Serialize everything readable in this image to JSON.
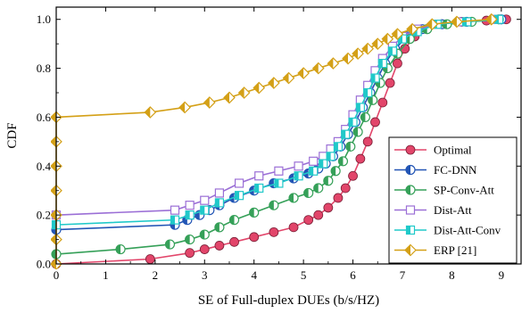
{
  "chart_data": {
    "type": "line",
    "title": "",
    "xlabel": "SE of Full-duplex DUEs (b/s/HZ)",
    "ylabel": "CDF",
    "xlim": [
      0,
      9.4
    ],
    "ylim": [
      0,
      1.05
    ],
    "xticks": [
      "0",
      "1",
      "2",
      "3",
      "4",
      "5",
      "6",
      "7",
      "8",
      "9"
    ],
    "yticks": [
      "0.0",
      "0.2",
      "0.4",
      "0.6",
      "0.8",
      "1.0"
    ],
    "grid": false,
    "legend_position": "bottom-right",
    "series": [
      {
        "name": "Optimal",
        "color": "#e2456a",
        "marker": "circle",
        "points": [
          [
            0,
            0
          ],
          [
            1.9,
            0.02
          ],
          [
            2.7,
            0.045
          ],
          [
            3.0,
            0.06
          ],
          [
            3.3,
            0.075
          ],
          [
            3.6,
            0.09
          ],
          [
            4.0,
            0.11
          ],
          [
            4.4,
            0.13
          ],
          [
            4.8,
            0.15
          ],
          [
            5.1,
            0.18
          ],
          [
            5.3,
            0.2
          ],
          [
            5.5,
            0.23
          ],
          [
            5.7,
            0.27
          ],
          [
            5.85,
            0.31
          ],
          [
            6.0,
            0.36
          ],
          [
            6.15,
            0.43
          ],
          [
            6.3,
            0.5
          ],
          [
            6.45,
            0.58
          ],
          [
            6.6,
            0.66
          ],
          [
            6.75,
            0.74
          ],
          [
            6.9,
            0.82
          ],
          [
            7.05,
            0.88
          ],
          [
            7.25,
            0.93
          ],
          [
            7.5,
            0.96
          ],
          [
            7.8,
            0.98
          ],
          [
            8.2,
            0.99
          ],
          [
            8.7,
            0.995
          ],
          [
            9.1,
            1.0
          ]
        ]
      },
      {
        "name": "FC-DNN",
        "color": "#2255b5",
        "marker": "half-circle",
        "points": [
          [
            0,
            0.14
          ],
          [
            2.4,
            0.16
          ],
          [
            2.65,
            0.18
          ],
          [
            2.9,
            0.2
          ],
          [
            3.1,
            0.22
          ],
          [
            3.3,
            0.24
          ],
          [
            3.6,
            0.27
          ],
          [
            4.0,
            0.3
          ],
          [
            4.4,
            0.33
          ],
          [
            4.8,
            0.35
          ],
          [
            5.1,
            0.37
          ],
          [
            5.3,
            0.39
          ],
          [
            5.45,
            0.41
          ],
          [
            5.6,
            0.44
          ],
          [
            5.75,
            0.48
          ],
          [
            5.9,
            0.53
          ],
          [
            6.05,
            0.58
          ],
          [
            6.2,
            0.64
          ],
          [
            6.35,
            0.7
          ],
          [
            6.5,
            0.76
          ],
          [
            6.65,
            0.82
          ],
          [
            6.85,
            0.88
          ],
          [
            7.1,
            0.93
          ],
          [
            7.4,
            0.96
          ],
          [
            7.8,
            0.98
          ],
          [
            8.3,
            0.99
          ],
          [
            9.0,
            1.0
          ]
        ]
      },
      {
        "name": "SP-Conv-Att",
        "color": "#35a058",
        "marker": "half-circle",
        "points": [
          [
            0,
            0.04
          ],
          [
            1.3,
            0.06
          ],
          [
            2.3,
            0.08
          ],
          [
            2.7,
            0.1
          ],
          [
            3.0,
            0.12
          ],
          [
            3.3,
            0.15
          ],
          [
            3.6,
            0.18
          ],
          [
            4.0,
            0.21
          ],
          [
            4.4,
            0.24
          ],
          [
            4.8,
            0.27
          ],
          [
            5.1,
            0.29
          ],
          [
            5.3,
            0.31
          ],
          [
            5.5,
            0.34
          ],
          [
            5.65,
            0.38
          ],
          [
            5.8,
            0.42
          ],
          [
            5.95,
            0.48
          ],
          [
            6.1,
            0.54
          ],
          [
            6.25,
            0.6
          ],
          [
            6.4,
            0.67
          ],
          [
            6.55,
            0.74
          ],
          [
            6.7,
            0.8
          ],
          [
            6.9,
            0.86
          ],
          [
            7.15,
            0.92
          ],
          [
            7.5,
            0.96
          ],
          [
            7.9,
            0.98
          ],
          [
            8.4,
            0.99
          ],
          [
            8.95,
            1.0
          ]
        ]
      },
      {
        "name": "Dist-Att",
        "color": "#9b6fd6",
        "marker": "square",
        "points": [
          [
            0,
            0.2
          ],
          [
            2.4,
            0.22
          ],
          [
            2.7,
            0.24
          ],
          [
            3.0,
            0.26
          ],
          [
            3.3,
            0.29
          ],
          [
            3.7,
            0.33
          ],
          [
            4.1,
            0.36
          ],
          [
            4.5,
            0.38
          ],
          [
            4.9,
            0.4
          ],
          [
            5.2,
            0.42
          ],
          [
            5.4,
            0.44
          ],
          [
            5.55,
            0.47
          ],
          [
            5.7,
            0.5
          ],
          [
            5.85,
            0.55
          ],
          [
            6.0,
            0.61
          ],
          [
            6.15,
            0.67
          ],
          [
            6.3,
            0.73
          ],
          [
            6.45,
            0.79
          ],
          [
            6.6,
            0.84
          ],
          [
            6.8,
            0.89
          ],
          [
            7.0,
            0.93
          ],
          [
            7.3,
            0.96
          ],
          [
            7.7,
            0.98
          ],
          [
            8.2,
            0.99
          ],
          [
            8.9,
            1.0
          ]
        ]
      },
      {
        "name": "Dist-Att-Conv",
        "color": "#20c9c9",
        "marker": "half-square",
        "points": [
          [
            0,
            0.16
          ],
          [
            2.4,
            0.18
          ],
          [
            2.7,
            0.2
          ],
          [
            3.0,
            0.22
          ],
          [
            3.3,
            0.25
          ],
          [
            3.7,
            0.28
          ],
          [
            4.1,
            0.31
          ],
          [
            4.5,
            0.33
          ],
          [
            4.9,
            0.36
          ],
          [
            5.2,
            0.38
          ],
          [
            5.4,
            0.41
          ],
          [
            5.55,
            0.44
          ],
          [
            5.7,
            0.48
          ],
          [
            5.85,
            0.53
          ],
          [
            6.0,
            0.58
          ],
          [
            6.15,
            0.64
          ],
          [
            6.3,
            0.7
          ],
          [
            6.45,
            0.76
          ],
          [
            6.6,
            0.82
          ],
          [
            6.8,
            0.87
          ],
          [
            7.0,
            0.92
          ],
          [
            7.3,
            0.95
          ],
          [
            7.7,
            0.98
          ],
          [
            8.3,
            0.99
          ],
          [
            8.95,
            1.0
          ]
        ]
      },
      {
        "name": "ERP [21]",
        "color": "#d4a017",
        "marker": "half-diamond",
        "points": [
          [
            0,
            0
          ],
          [
            0,
            0.1
          ],
          [
            0,
            0.2
          ],
          [
            0,
            0.3
          ],
          [
            0,
            0.4
          ],
          [
            0,
            0.5
          ],
          [
            0,
            0.6
          ],
          [
            1.9,
            0.62
          ],
          [
            2.6,
            0.64
          ],
          [
            3.1,
            0.66
          ],
          [
            3.5,
            0.68
          ],
          [
            3.8,
            0.7
          ],
          [
            4.1,
            0.72
          ],
          [
            4.4,
            0.74
          ],
          [
            4.7,
            0.76
          ],
          [
            5.0,
            0.78
          ],
          [
            5.3,
            0.8
          ],
          [
            5.6,
            0.82
          ],
          [
            5.9,
            0.84
          ],
          [
            6.1,
            0.86
          ],
          [
            6.3,
            0.88
          ],
          [
            6.5,
            0.9
          ],
          [
            6.7,
            0.92
          ],
          [
            6.9,
            0.94
          ],
          [
            7.2,
            0.96
          ],
          [
            7.6,
            0.98
          ],
          [
            8.1,
            0.99
          ],
          [
            8.8,
            1.0
          ]
        ]
      }
    ]
  }
}
